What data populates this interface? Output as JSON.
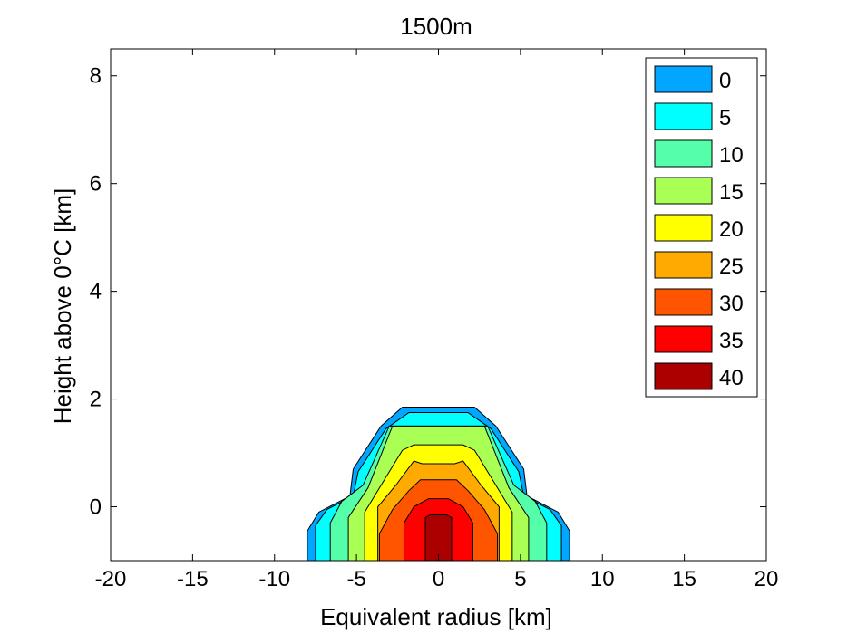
{
  "chart_data": {
    "type": "filled_contour",
    "title": "1500m",
    "xlabel": "Equivalent radius [km]",
    "ylabel": "Height above 0°C [km]",
    "xlim": [
      -20,
      20
    ],
    "ylim": [
      -1,
      8.5
    ],
    "xticks": [
      -20,
      -15,
      -10,
      -5,
      0,
      5,
      10,
      15,
      20
    ],
    "yticks": [
      0,
      2,
      4,
      6,
      8
    ],
    "legend": {
      "placement": "top-right",
      "entries": [
        {
          "label": "0",
          "color": "#00A6FF"
        },
        {
          "label": "5",
          "color": "#00FFFF"
        },
        {
          "label": "10",
          "color": "#55FFAA"
        },
        {
          "label": "15",
          "color": "#AAFF55"
        },
        {
          "label": "20",
          "color": "#FFFF00"
        },
        {
          "label": "25",
          "color": "#FFAA00"
        },
        {
          "label": "30",
          "color": "#FF5500"
        },
        {
          "label": "35",
          "color": "#FF0000"
        },
        {
          "label": "40",
          "color": "#AA0000"
        }
      ]
    },
    "contours": [
      {
        "level": 0,
        "color": "#00A6FF",
        "points": [
          [
            -8,
            -1
          ],
          [
            -8,
            -0.45
          ],
          [
            -7.3,
            -0.1
          ],
          [
            -5.4,
            0.2
          ],
          [
            -5.2,
            0.7
          ],
          [
            -3.5,
            1.5
          ],
          [
            -2.2,
            1.85
          ],
          [
            2.2,
            1.85
          ],
          [
            3.5,
            1.5
          ],
          [
            5.2,
            0.7
          ],
          [
            5.4,
            0.2
          ],
          [
            7.3,
            -0.1
          ],
          [
            8,
            -0.45
          ],
          [
            8,
            -1
          ]
        ]
      },
      {
        "level": 5,
        "color": "#00FFFF",
        "points": [
          [
            -7.5,
            -1
          ],
          [
            -7.5,
            -0.35
          ],
          [
            -6.8,
            -0.05
          ],
          [
            -5.2,
            0.2
          ],
          [
            -4.9,
            0.65
          ],
          [
            -3.2,
            1.45
          ],
          [
            -1.8,
            1.75
          ],
          [
            1.8,
            1.75
          ],
          [
            3.2,
            1.45
          ],
          [
            4.9,
            0.65
          ],
          [
            5.2,
            0.2
          ],
          [
            6.8,
            -0.05
          ],
          [
            7.5,
            -0.35
          ],
          [
            7.5,
            -1
          ]
        ]
      },
      {
        "level": 10,
        "color": "#55FFAA",
        "points": [
          [
            -6.6,
            -1
          ],
          [
            -6.6,
            -0.3
          ],
          [
            -5.9,
            0.1
          ],
          [
            -4.6,
            0.4
          ],
          [
            -3,
            1.5
          ],
          [
            3,
            1.5
          ],
          [
            4.6,
            0.4
          ],
          [
            5.9,
            0.1
          ],
          [
            6.6,
            -0.3
          ],
          [
            6.6,
            -1
          ]
        ]
      },
      {
        "level": 15,
        "color": "#AAFF55",
        "points": [
          [
            -5.5,
            -1
          ],
          [
            -5.5,
            -0.2
          ],
          [
            -4.3,
            0.35
          ],
          [
            -3,
            1.35
          ],
          [
            -2.8,
            1.5
          ],
          [
            2.8,
            1.5
          ],
          [
            3,
            1.35
          ],
          [
            4.3,
            0.35
          ],
          [
            5.5,
            -0.2
          ],
          [
            5.5,
            -1
          ]
        ]
      },
      {
        "level": 20,
        "color": "#FFFF00",
        "points": [
          [
            -4.5,
            -1
          ],
          [
            -4.5,
            -0.1
          ],
          [
            -3.3,
            0.5
          ],
          [
            -2.2,
            1.05
          ],
          [
            -1.5,
            1.15
          ],
          [
            1.5,
            1.15
          ],
          [
            2.2,
            1.05
          ],
          [
            3.3,
            0.5
          ],
          [
            4.5,
            -0.1
          ],
          [
            4.5,
            -1
          ]
        ]
      },
      {
        "level": 25,
        "color": "#FFAA00",
        "points": [
          [
            -3.7,
            -1
          ],
          [
            -3.7,
            0
          ],
          [
            -2.6,
            0.4
          ],
          [
            -1.5,
            0.85
          ],
          [
            -1,
            0.8
          ],
          [
            1,
            0.8
          ],
          [
            1.5,
            0.85
          ],
          [
            2.6,
            0.4
          ],
          [
            3.7,
            0
          ],
          [
            3.7,
            -1
          ]
        ]
      },
      {
        "level": 30,
        "color": "#FF5500",
        "points": [
          [
            -3.6,
            -1
          ],
          [
            -3.6,
            -0.5
          ],
          [
            -2.8,
            -0.05
          ],
          [
            -1.8,
            0.3
          ],
          [
            -1.1,
            0.5
          ],
          [
            1.1,
            0.5
          ],
          [
            1.8,
            0.3
          ],
          [
            2.8,
            -0.05
          ],
          [
            3.6,
            -0.5
          ],
          [
            3.6,
            -1
          ]
        ]
      },
      {
        "level": 35,
        "color": "#FF0000",
        "points": [
          [
            -2.1,
            -1
          ],
          [
            -2.1,
            -0.3
          ],
          [
            -1.5,
            0
          ],
          [
            -0.6,
            0.15
          ],
          [
            0.6,
            0.15
          ],
          [
            1.5,
            0
          ],
          [
            2.1,
            -0.3
          ],
          [
            2.1,
            -1
          ]
        ]
      },
      {
        "level": 40,
        "color": "#AA0000",
        "points": [
          [
            -0.8,
            -1
          ],
          [
            -0.8,
            -0.2
          ],
          [
            -0.5,
            -0.15
          ],
          [
            0.5,
            -0.15
          ],
          [
            0.8,
            -0.2
          ],
          [
            0.8,
            -1
          ]
        ]
      }
    ]
  }
}
